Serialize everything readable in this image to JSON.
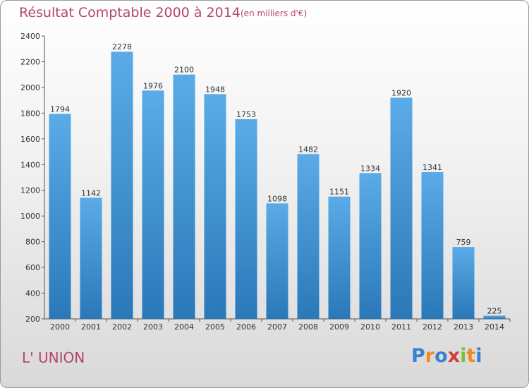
{
  "title": "Résultat Comptable 2000 à 2014",
  "unit_note": "(en milliers d'€)",
  "commune": "L' UNION",
  "logo": {
    "text": "Proxiti",
    "letters": [
      {
        "ch": "P",
        "color": "#3a7fd5"
      },
      {
        "ch": "r",
        "color": "#f08a24"
      },
      {
        "ch": "o",
        "color": "#3a7fd5"
      },
      {
        "ch": "x",
        "color": "#d63a3a"
      },
      {
        "ch": "i",
        "color": "#7cbf3a"
      },
      {
        "ch": "t",
        "color": "#f08a24"
      },
      {
        "ch": "i",
        "color": "#3a7fd5"
      }
    ]
  },
  "colors": {
    "bar_top": "#5aabe8",
    "bar_bottom": "#2a78b8",
    "title": "#b5456b"
  },
  "chart_data": {
    "type": "bar",
    "title": "Résultat Comptable 2000 à 2014",
    "categories": [
      "2000",
      "2001",
      "2002",
      "2003",
      "2004",
      "2005",
      "2006",
      "2007",
      "2008",
      "2009",
      "2010",
      "2011",
      "2012",
      "2013",
      "2014"
    ],
    "values": [
      1794,
      1142,
      2278,
      1976,
      2100,
      1948,
      1753,
      1098,
      1482,
      1151,
      1334,
      1920,
      1341,
      759,
      225
    ],
    "ylim": [
      200,
      2400
    ],
    "yticks": [
      200,
      400,
      600,
      800,
      1000,
      1200,
      1400,
      1600,
      1800,
      2000,
      2200,
      2400
    ],
    "grid": false,
    "xlabel": "",
    "ylabel": ""
  }
}
